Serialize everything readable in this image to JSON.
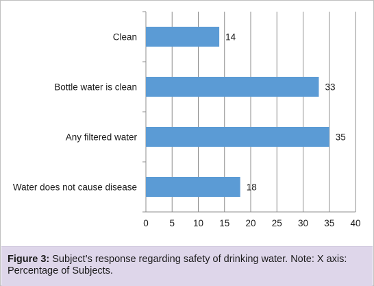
{
  "chart_data": {
    "type": "bar",
    "orientation": "horizontal",
    "categories": [
      "Clean",
      "Bottle water is clean",
      "Any filtered water",
      "Water does not cause disease"
    ],
    "values": [
      14,
      33,
      35,
      18
    ],
    "data_labels": [
      "14",
      "33",
      "35",
      "18"
    ],
    "xlim": [
      0,
      40
    ],
    "xticks": [
      "0",
      "5",
      "10",
      "15",
      "20",
      "25",
      "30",
      "35",
      "40"
    ],
    "grid": "vertical",
    "legend": "none",
    "bar_color": "#5b9bd5",
    "grid_color": "#8c8c8c"
  },
  "caption": {
    "label": "Figure 3:",
    "text": " Subject’s response regarding safety of drinking water. Note: X axis: Percentage of Subjects."
  },
  "colors": {
    "caption_background": "#ded6ea",
    "figure_border": "#bfbfbf"
  }
}
